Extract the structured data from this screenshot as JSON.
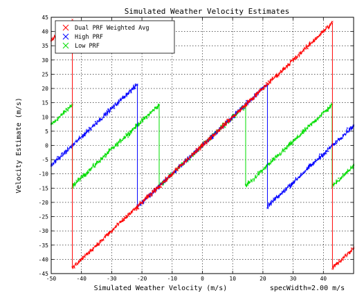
{
  "chart_data": {
    "type": "scatter",
    "title": "Simulated Weather Velocity Estimates",
    "xlabel": "Simulated Weather Velocity (m/s)",
    "xlabel_note": "specWidth=2.00 m/s",
    "ylabel": "Velocity Estimate (m/s)",
    "xlim": [
      -50,
      50
    ],
    "ylim": [
      -45,
      45
    ],
    "xticks": [
      -50,
      -40,
      -30,
      -20,
      -10,
      0,
      10,
      20,
      30,
      40
    ],
    "yticks": [
      -45,
      -40,
      -35,
      -30,
      -25,
      -20,
      -15,
      -10,
      -5,
      0,
      5,
      10,
      15,
      20,
      25,
      30,
      35,
      40,
      45
    ],
    "grid": true,
    "legend_position": "top-left",
    "marker": "x",
    "series": [
      {
        "name": "Dual PRF Weighted Avg",
        "color": "#ff0000",
        "nyquist": 43,
        "points": [
          [
            -50,
            37
          ],
          [
            -43.001,
            43
          ],
          [
            -43,
            -43
          ],
          [
            -30,
            -30
          ],
          [
            0,
            0
          ],
          [
            30,
            30
          ],
          [
            42.999,
            43
          ],
          [
            43,
            -43
          ],
          [
            50,
            -36
          ]
        ]
      },
      {
        "name": "High PRF",
        "color": "#0000ff",
        "nyquist": 21.5,
        "points": [
          [
            -50,
            -7
          ],
          [
            -43.001,
            0
          ],
          [
            -43,
            0
          ],
          [
            -21.501,
            21.5
          ],
          [
            -21.5,
            -21.5
          ],
          [
            0,
            0
          ],
          [
            21.499,
            21.5
          ],
          [
            21.5,
            -21.5
          ],
          [
            43,
            0
          ],
          [
            50,
            7
          ]
        ]
      },
      {
        "name": "Low PRF",
        "color": "#00dd00",
        "nyquist": 14.3,
        "points": [
          [
            -50,
            7.2
          ],
          [
            -43.001,
            14.3
          ],
          [
            -43,
            -14.3
          ],
          [
            -14.301,
            14.3
          ],
          [
            -14.3,
            -14.3
          ],
          [
            0,
            0
          ],
          [
            14.299,
            14.3
          ],
          [
            14.3,
            -14.3
          ],
          [
            42.899,
            14.3
          ],
          [
            42.9,
            -14.3
          ],
          [
            50,
            -7.2
          ]
        ]
      }
    ]
  }
}
